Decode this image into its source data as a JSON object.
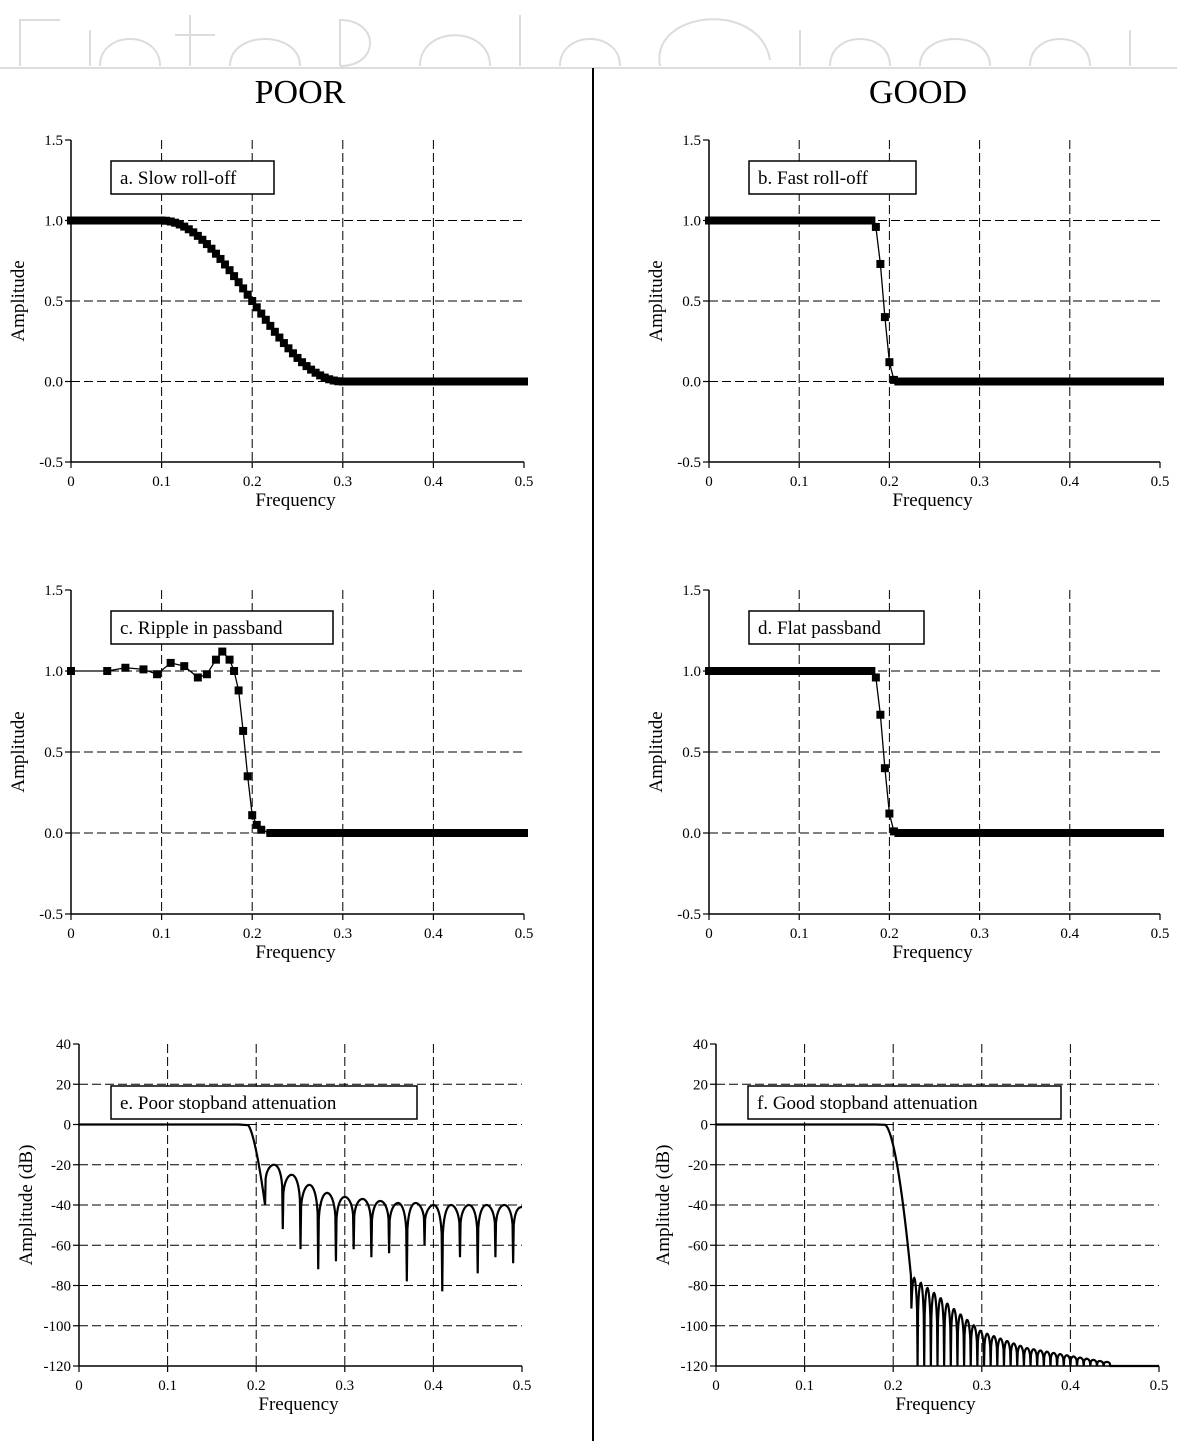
{
  "headers": {
    "left": "POOR",
    "right": "GOOD"
  },
  "colors": {
    "ink": "#000000",
    "watermark": "#dcdcdc"
  },
  "chart_data": [
    {
      "id": "a",
      "type": "line",
      "marker": "square",
      "label": "a.  Slow roll-off",
      "xlabel": "Frequency",
      "ylabel": "Amplitude",
      "xlim": [
        0,
        0.5
      ],
      "ylim": [
        -0.5,
        1.5
      ],
      "xticks": [
        0,
        0.1,
        0.2,
        0.3,
        0.4,
        0.5
      ],
      "xtick_labels": [
        "0",
        "0.1",
        "0.2",
        "0.3",
        "0.4",
        "0.5"
      ],
      "yticks": [
        -0.5,
        0,
        0.5,
        1,
        1.5
      ],
      "ytick_labels": [
        "-0.5",
        "0.0",
        "0.5",
        "1.0",
        "1.5"
      ],
      "grid": true,
      "curve": {
        "kind": "slow",
        "f1": 0.1,
        "f2": 0.3
      }
    },
    {
      "id": "b",
      "type": "line",
      "marker": "square",
      "label": "b.  Fast roll-off",
      "xlabel": "Frequency",
      "ylabel": "Amplitude",
      "xlim": [
        0,
        0.5
      ],
      "ylim": [
        -0.5,
        1.5
      ],
      "xticks": [
        0,
        0.1,
        0.2,
        0.3,
        0.4,
        0.5
      ],
      "xtick_labels": [
        "0",
        "0.1",
        "0.2",
        "0.3",
        "0.4",
        "0.5"
      ],
      "yticks": [
        -0.5,
        0,
        0.5,
        1,
        1.5
      ],
      "ytick_labels": [
        "-0.5",
        "0.0",
        "0.5",
        "1.0",
        "1.5"
      ],
      "grid": true,
      "points": [
        [
          0.18,
          1.0
        ],
        [
          0.185,
          0.96
        ],
        [
          0.19,
          0.73
        ],
        [
          0.195,
          0.4
        ],
        [
          0.2,
          0.12
        ],
        [
          0.205,
          0.01
        ],
        [
          0.21,
          0.0
        ]
      ]
    },
    {
      "id": "c",
      "type": "line",
      "marker": "square",
      "label": "c.  Ripple in passband",
      "xlabel": "Frequency",
      "ylabel": "Amplitude",
      "xlim": [
        0,
        0.5
      ],
      "ylim": [
        -0.5,
        1.5
      ],
      "xticks": [
        0,
        0.1,
        0.2,
        0.3,
        0.4,
        0.5
      ],
      "xtick_labels": [
        "0",
        "0.1",
        "0.2",
        "0.3",
        "0.4",
        "0.5"
      ],
      "yticks": [
        -0.5,
        0,
        0.5,
        1,
        1.5
      ],
      "ytick_labels": [
        "-0.5",
        "0.0",
        "0.5",
        "1.0",
        "1.5"
      ],
      "grid": true,
      "points": [
        [
          0.0,
          1.0
        ],
        [
          0.04,
          1.0
        ],
        [
          0.06,
          1.02
        ],
        [
          0.08,
          1.01
        ],
        [
          0.095,
          0.98
        ],
        [
          0.11,
          1.05
        ],
        [
          0.125,
          1.03
        ],
        [
          0.14,
          0.96
        ],
        [
          0.15,
          0.98
        ],
        [
          0.16,
          1.07
        ],
        [
          0.167,
          1.12
        ],
        [
          0.175,
          1.07
        ],
        [
          0.18,
          1.0
        ],
        [
          0.185,
          0.88
        ],
        [
          0.19,
          0.63
        ],
        [
          0.195,
          0.35
        ],
        [
          0.2,
          0.11
        ],
        [
          0.205,
          0.05
        ],
        [
          0.21,
          0.02
        ],
        [
          0.22,
          0.0
        ]
      ]
    },
    {
      "id": "d",
      "type": "line",
      "marker": "square",
      "label": "d.  Flat passband",
      "xlabel": "Frequency",
      "ylabel": "Amplitude",
      "xlim": [
        0,
        0.5
      ],
      "ylim": [
        -0.5,
        1.5
      ],
      "xticks": [
        0,
        0.1,
        0.2,
        0.3,
        0.4,
        0.5
      ],
      "xtick_labels": [
        "0",
        "0.1",
        "0.2",
        "0.3",
        "0.4",
        "0.5"
      ],
      "yticks": [
        -0.5,
        0,
        0.5,
        1,
        1.5
      ],
      "ytick_labels": [
        "-0.5",
        "0.0",
        "0.5",
        "1.0",
        "1.5"
      ],
      "grid": true,
      "points": [
        [
          0.18,
          1.0
        ],
        [
          0.185,
          0.96
        ],
        [
          0.19,
          0.73
        ],
        [
          0.195,
          0.4
        ],
        [
          0.2,
          0.12
        ],
        [
          0.205,
          0.01
        ],
        [
          0.21,
          0.0
        ]
      ]
    },
    {
      "id": "e",
      "type": "line",
      "marker": "none",
      "label": "e.  Poor stopband attenuation",
      "xlabel": "Frequency",
      "ylabel": "Amplitude (dB)",
      "xlim": [
        0,
        0.5
      ],
      "ylim": [
        -120,
        40
      ],
      "xticks": [
        0,
        0.1,
        0.2,
        0.3,
        0.4,
        0.5
      ],
      "xtick_labels": [
        "0",
        "0.1",
        "0.2",
        "0.3",
        "0.4",
        "0.5"
      ],
      "yticks": [
        -120,
        -100,
        -80,
        -60,
        -40,
        -20,
        0,
        20,
        40
      ],
      "ytick_labels": [
        "-120",
        "-100",
        "-80",
        "-60",
        "-40",
        "-20",
        "0",
        "20",
        "40"
      ],
      "grid": true,
      "curve": {
        "kind": "poor-db",
        "edge": 0.19,
        "first_null": 0.21,
        "lobe_width": 0.02,
        "lobe_peaks": [
          -20,
          -25,
          -30,
          -34,
          -36,
          -37,
          -38,
          -39,
          -39,
          -40,
          -40,
          -40,
          -40,
          -40,
          -41
        ],
        "null_depths": [
          -40,
          -52,
          -62,
          -72,
          -68,
          -62,
          -66,
          -64,
          -78,
          -60,
          -83,
          -66,
          -74,
          -66,
          -69
        ]
      }
    },
    {
      "id": "f",
      "type": "line",
      "marker": "none",
      "label": "f.  Good stopband attenuation",
      "xlabel": "Frequency",
      "ylabel": "Amplitude (dB)",
      "xlim": [
        0,
        0.5
      ],
      "ylim": [
        -120,
        40
      ],
      "xticks": [
        0,
        0.1,
        0.2,
        0.3,
        0.4,
        0.5
      ],
      "xtick_labels": [
        "0",
        "0.1",
        "0.2",
        "0.3",
        "0.4",
        "0.5"
      ],
      "yticks": [
        -120,
        -100,
        -80,
        -60,
        -40,
        -20,
        0,
        20,
        40
      ],
      "ytick_labels": [
        "-120",
        "-100",
        "-80",
        "-60",
        "-40",
        "-20",
        "0",
        "20",
        "40"
      ],
      "grid": true,
      "curve": {
        "kind": "good-db",
        "edge": 0.19,
        "drop_end": 0.22,
        "lobe_width": 0.0075,
        "envelope": [
          [
            0.22,
            -75
          ],
          [
            0.25,
            -85
          ],
          [
            0.3,
            -103
          ],
          [
            0.35,
            -111
          ],
          [
            0.4,
            -115
          ],
          [
            0.44,
            -118
          ]
        ],
        "floor": -120
      }
    }
  ]
}
